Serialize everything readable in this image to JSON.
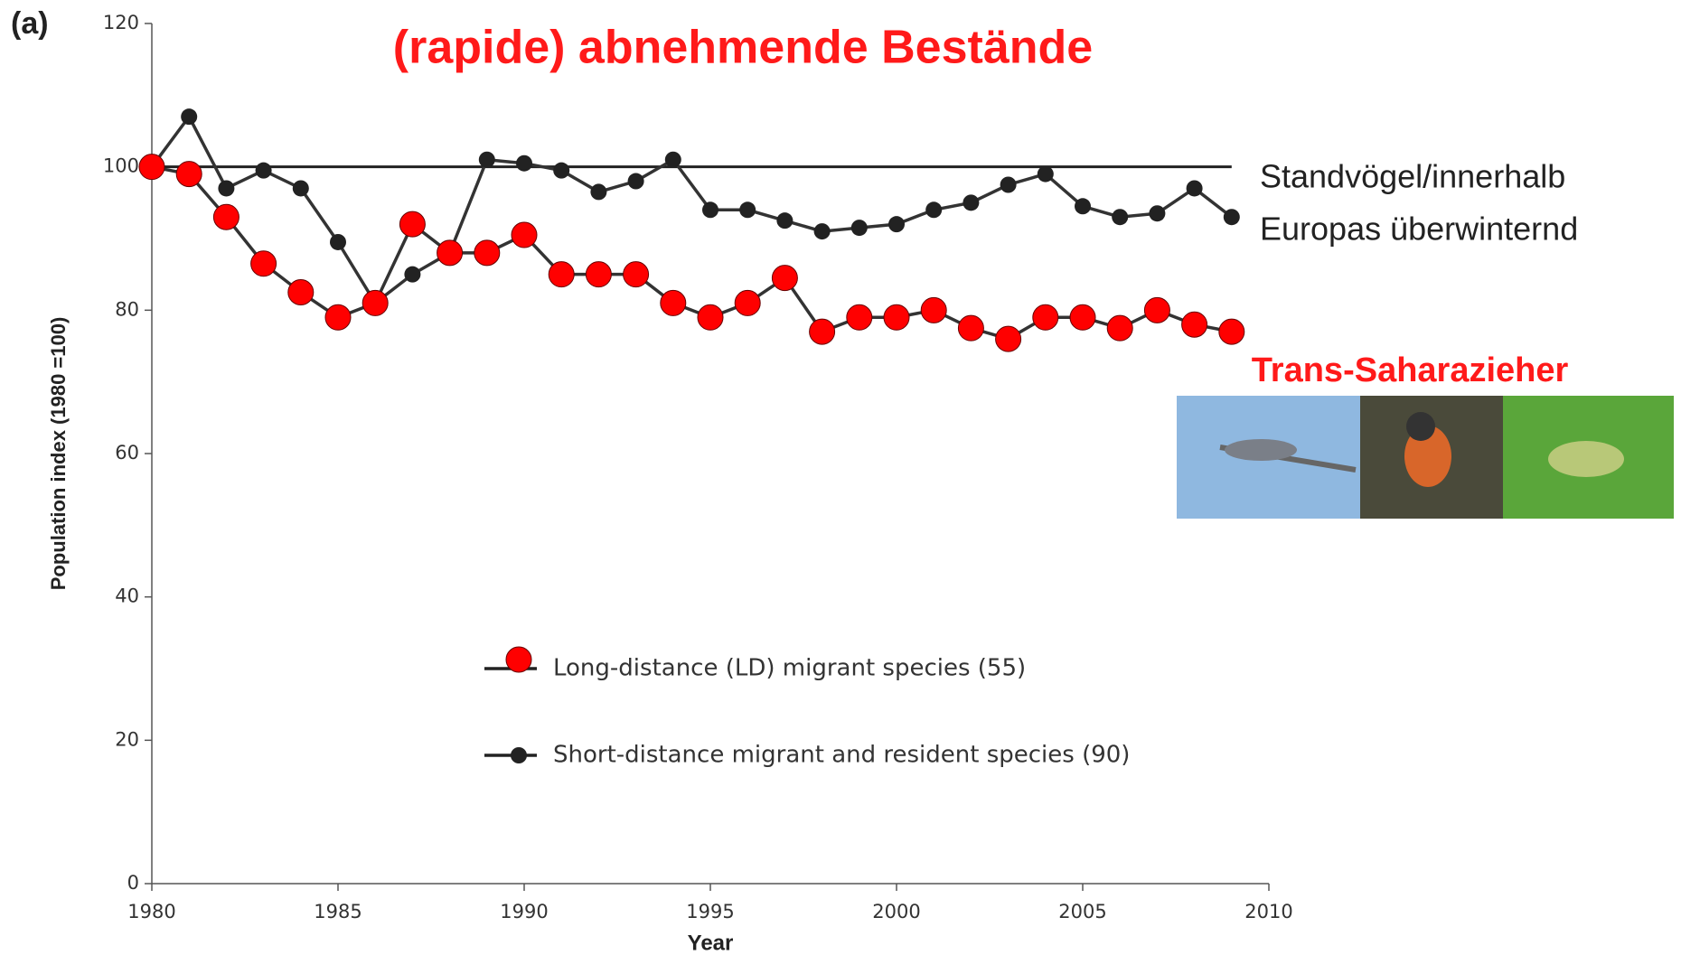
{
  "chart_data": {
    "type": "line",
    "panel_label": "(a)",
    "title": "(rapide) abnehmende Bestände",
    "xlabel": "Year",
    "ylabel": "Population index (1980 =100)",
    "x": [
      1980,
      1981,
      1982,
      1983,
      1984,
      1985,
      1986,
      1987,
      1988,
      1989,
      1990,
      1991,
      1992,
      1993,
      1994,
      1995,
      1996,
      1997,
      1998,
      1999,
      2000,
      2001,
      2002,
      2003,
      2004,
      2005,
      2006,
      2007,
      2008,
      2009
    ],
    "series": [
      {
        "name": "Long-distance (LD) migrant species (55)",
        "color": "#ff0000",
        "values": [
          100,
          99,
          93,
          86.5,
          82.5,
          79,
          81,
          92,
          88,
          88,
          90.5,
          85,
          85,
          85,
          81,
          79,
          81,
          84.5,
          77,
          79,
          79,
          80,
          77.5,
          76,
          79,
          79,
          77.5,
          80,
          78,
          77
        ]
      },
      {
        "name": "Short-distance migrant and resident species (90)",
        "color": "#222222",
        "values": [
          100,
          107,
          97,
          99.5,
          97,
          89.5,
          81,
          85,
          88,
          101,
          100.5,
          99.5,
          96.5,
          98,
          101,
          94,
          94,
          92.5,
          91,
          91.5,
          92,
          94,
          95,
          97.5,
          99,
          94.5,
          93,
          93.5,
          97,
          93
        ]
      }
    ],
    "reference_line": 100,
    "xlim": [
      1980,
      2010
    ],
    "xticks": [
      1980,
      1985,
      1990,
      1995,
      2000,
      2005,
      2010
    ],
    "ylim": [
      0,
      120
    ],
    "yticks": [
      0,
      20,
      40,
      60,
      80,
      100,
      120
    ],
    "annotations": [
      "Standvögel/innerhalb",
      "Europas überwinternd",
      "Trans-Saharazieher"
    ]
  }
}
